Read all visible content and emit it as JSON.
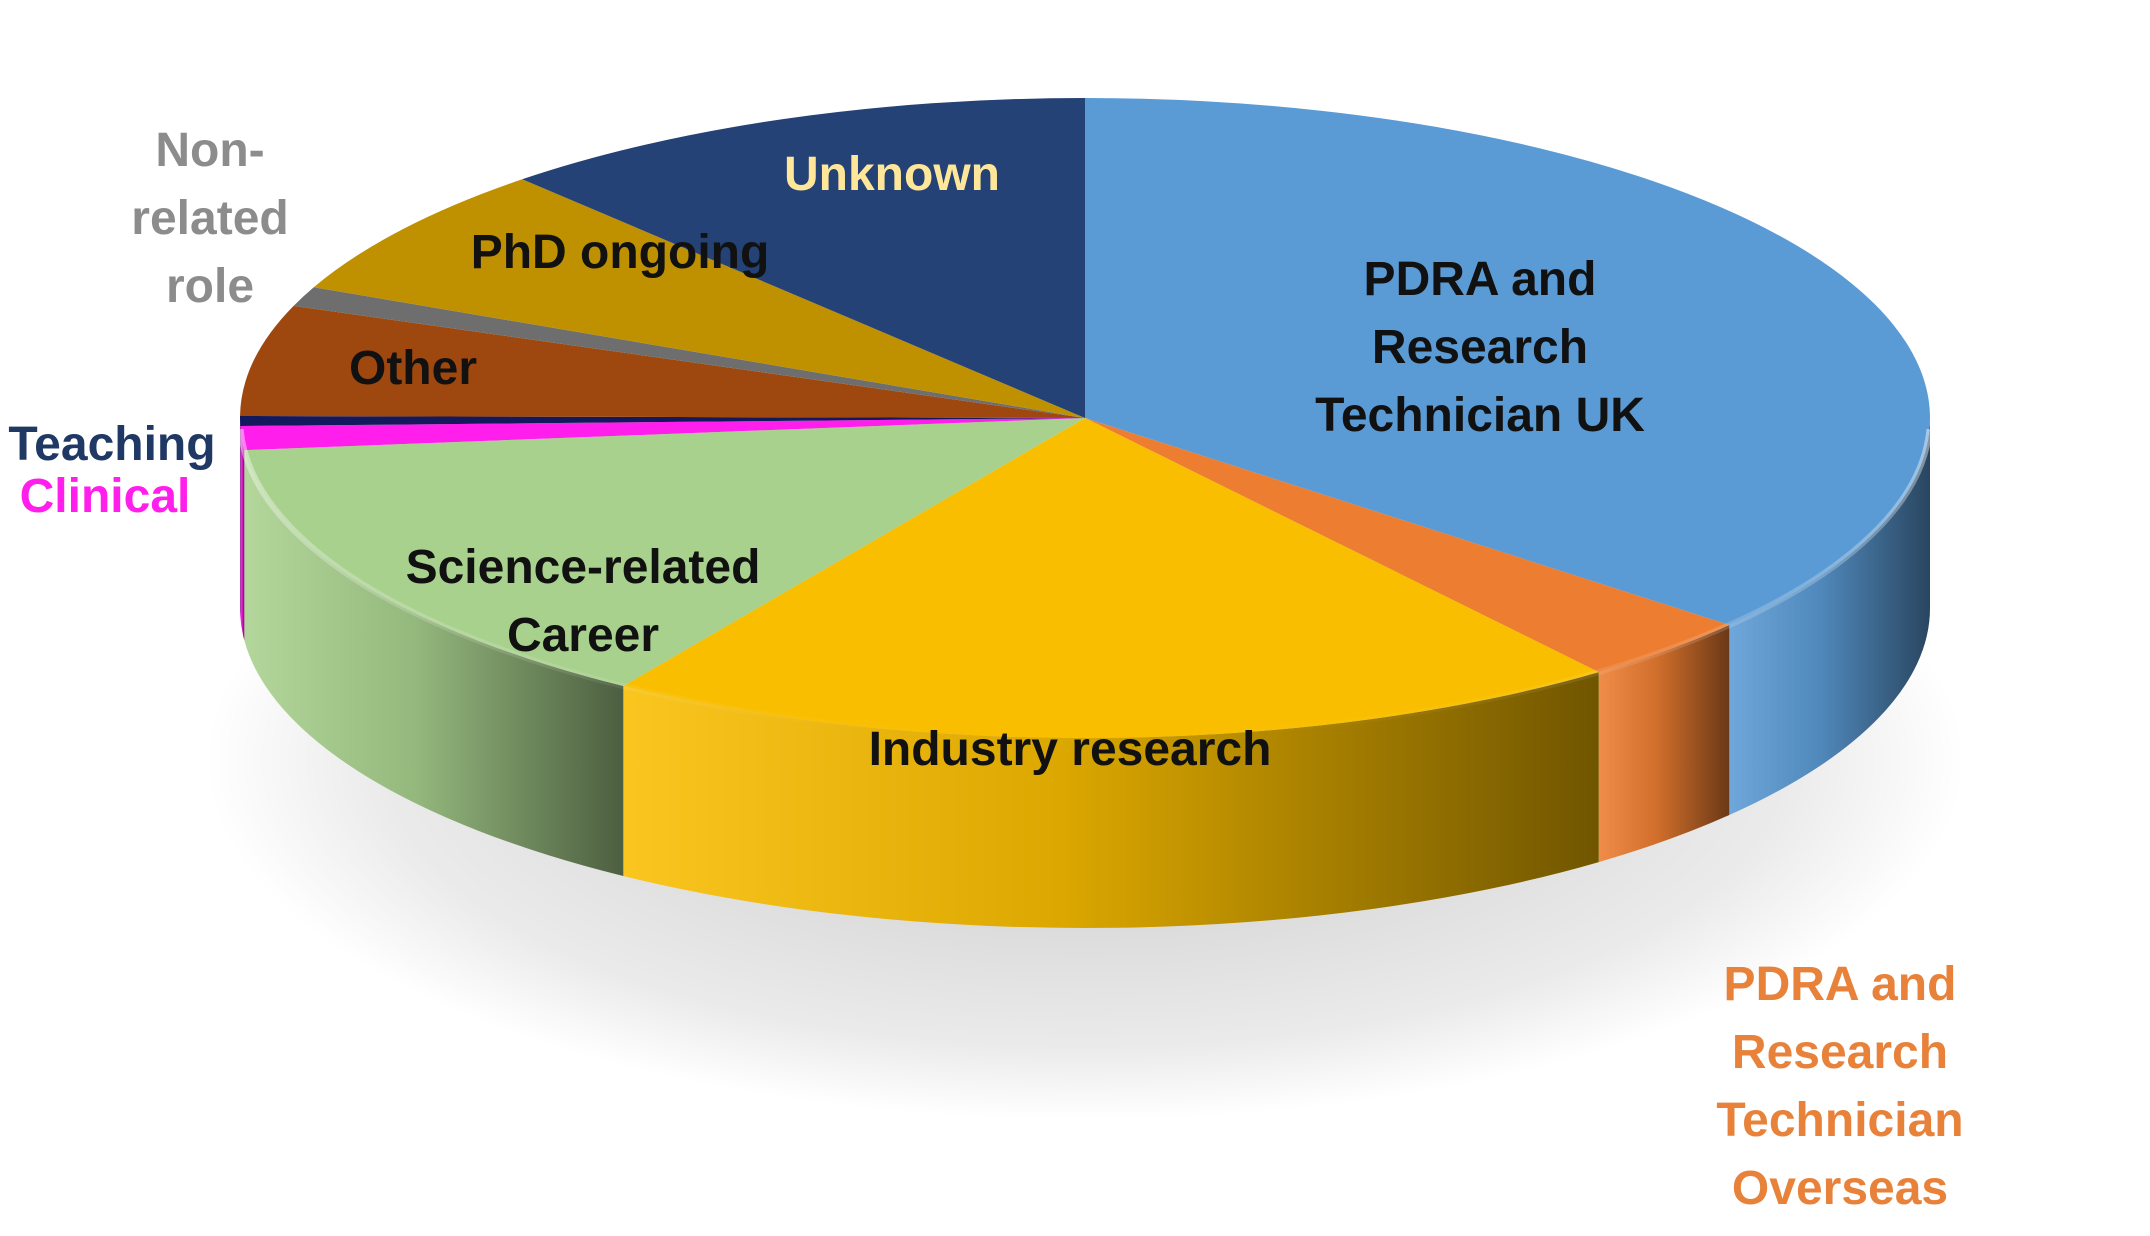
{
  "chart_data": {
    "type": "pie",
    "style": "3d",
    "start_angle_deg": 90,
    "direction": "clockwise",
    "legend": "none",
    "slices": [
      {
        "key": "pdra-uk",
        "name": "PDRA and Research Technician UK",
        "label_lines": [
          "PDRA and",
          "Research",
          "Technician UK"
        ],
        "value": 36.2,
        "color": "#5B9BD5",
        "label_color": "#111111"
      },
      {
        "key": "pdra-overseas",
        "name": "PDRA and Research Technician Overseas",
        "label_lines": [
          "PDRA and",
          "Research",
          "Technician",
          "Overseas"
        ],
        "value": 3.4,
        "color": "#ED7D31",
        "label_color": "#E8823A"
      },
      {
        "key": "industry",
        "name": "Industry research",
        "label_lines": [
          "Industry research"
        ],
        "value": 19.6,
        "color": "#F9BE00",
        "label_color": "#111111"
      },
      {
        "key": "science-career",
        "name": "Science-related Career",
        "label_lines": [
          "Science-related",
          "Career"
        ],
        "value": 14.2,
        "color": "#A9D18E",
        "label_color": "#111111"
      },
      {
        "key": "clinical",
        "name": "Clinical",
        "label_lines": [
          "Clinical"
        ],
        "value": 1.2,
        "color": "#FF1EEB",
        "label_color": "#FF1EEB"
      },
      {
        "key": "teaching",
        "name": "Teaching",
        "label_lines": [
          "Teaching"
        ],
        "value": 0.5,
        "color": "#14195E",
        "label_color": "#1F3864"
      },
      {
        "key": "other",
        "name": "Other",
        "label_lines": [
          "Other"
        ],
        "value": 5.6,
        "color": "#9E470E",
        "label_color": "#111111"
      },
      {
        "key": "non-related",
        "name": "Non-related role",
        "label_lines": [
          "Non-",
          "related",
          "role"
        ],
        "value": 1.0,
        "color": "#6E6E6E",
        "label_color": "#8C8C8C"
      },
      {
        "key": "phd",
        "name": "PhD ongoing",
        "label_lines": [
          "PhD ongoing"
        ],
        "value": 6.7,
        "color": "#BF9000",
        "label_color": "#111111"
      },
      {
        "key": "unknown",
        "name": "Unknown",
        "label_lines": [
          "Unknown"
        ],
        "value": 11.6,
        "color": "#244275",
        "label_color": "#FFE699"
      }
    ]
  }
}
